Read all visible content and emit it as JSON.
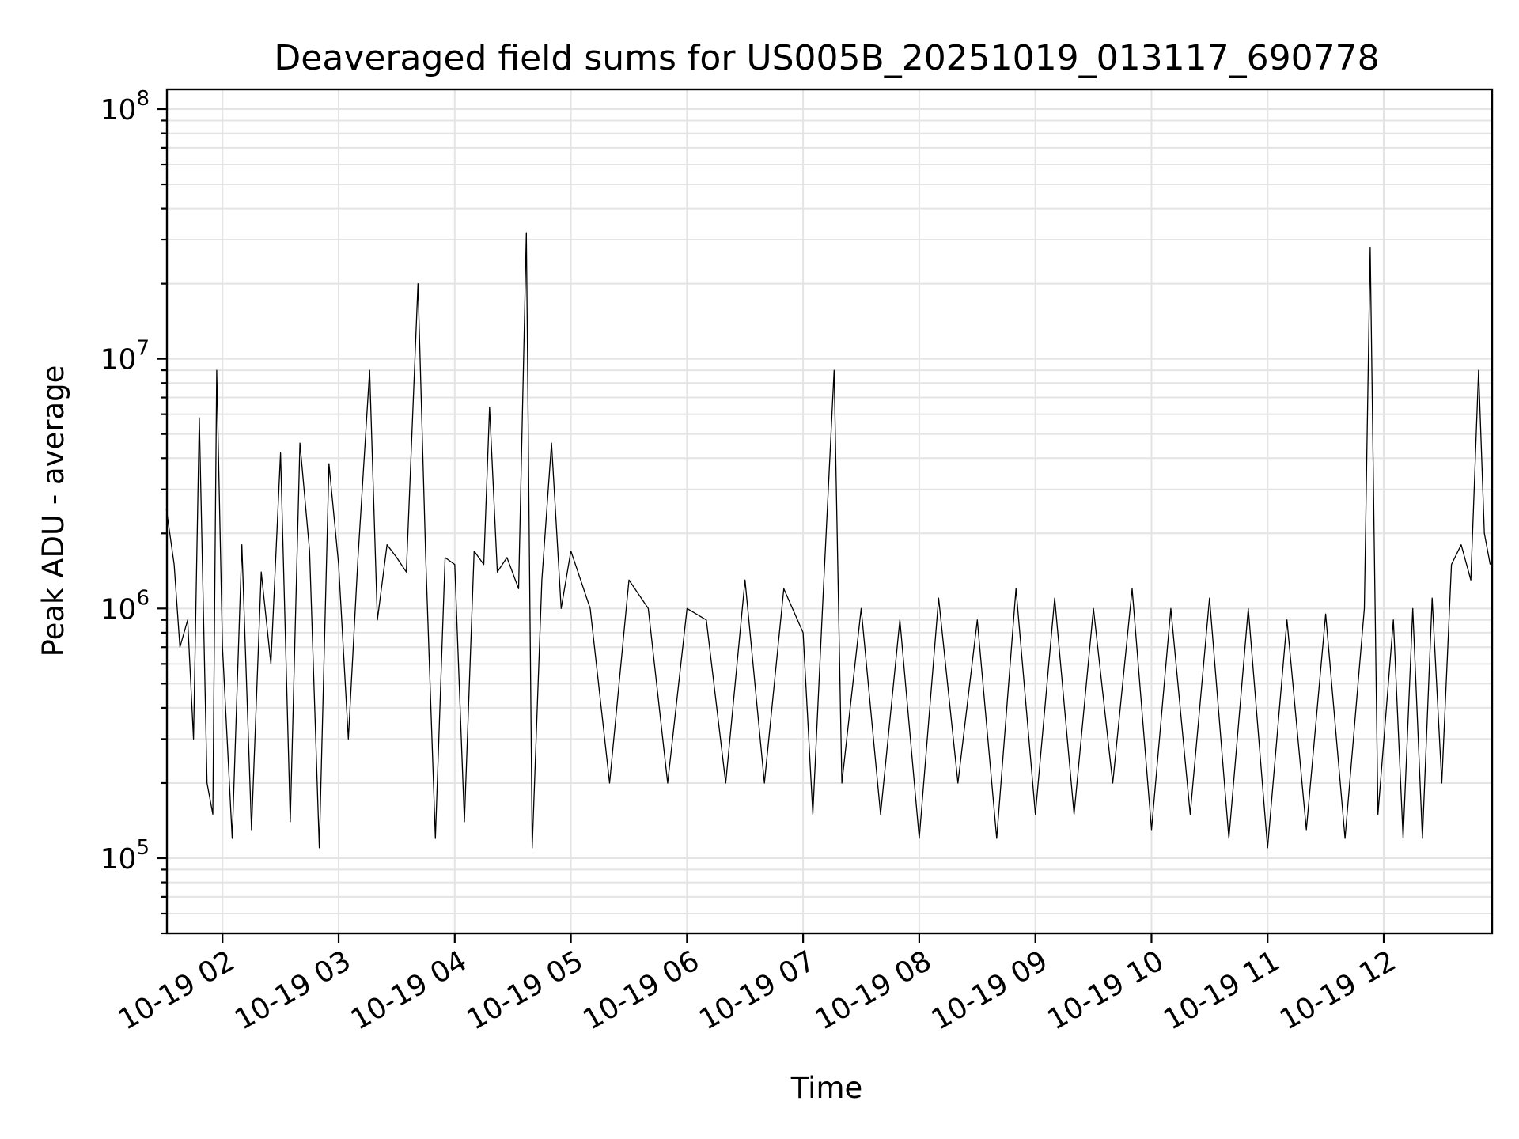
{
  "chart_data": {
    "type": "line",
    "title": "Deaveraged field sums for US005B_20251019_013117_690778",
    "xlabel": "Time",
    "ylabel": "Peak ADU - average",
    "yscale": "log",
    "ylim": [
      50000,
      120000000
    ],
    "xlim": [
      "2025-10-19 01:31:17",
      "2025-10-19 12:56:00"
    ],
    "grid": true,
    "x_ticks": [
      {
        "label": "10-19 02",
        "value": "2025-10-19 02:00"
      },
      {
        "label": "10-19 03",
        "value": "2025-10-19 03:00"
      },
      {
        "label": "10-19 04",
        "value": "2025-10-19 04:00"
      },
      {
        "label": "10-19 05",
        "value": "2025-10-19 05:00"
      },
      {
        "label": "10-19 06",
        "value": "2025-10-19 06:00"
      },
      {
        "label": "10-19 07",
        "value": "2025-10-19 07:00"
      },
      {
        "label": "10-19 08",
        "value": "2025-10-19 08:00"
      },
      {
        "label": "10-19 09",
        "value": "2025-10-19 09:00"
      },
      {
        "label": "10-19 10",
        "value": "2025-10-19 10:00"
      },
      {
        "label": "10-19 11",
        "value": "2025-10-19 11:00"
      },
      {
        "label": "10-19 12",
        "value": "2025-10-19 12:00"
      }
    ],
    "y_ticks": [
      {
        "base": "10",
        "exp": "5",
        "value": 100000
      },
      {
        "base": "10",
        "exp": "6",
        "value": 1000000
      },
      {
        "base": "10",
        "exp": "7",
        "value": 10000000
      },
      {
        "base": "10",
        "exp": "8",
        "value": 100000000
      }
    ],
    "line_color": "#000000",
    "series": [
      {
        "x": [
          "2025-10-19 01:31",
          "2025-10-19 01:35",
          "2025-10-19 01:38",
          "2025-10-19 01:42",
          "2025-10-19 01:45",
          "2025-10-19 01:48",
          "2025-10-19 01:52",
          "2025-10-19 01:55",
          "2025-10-19 01:57",
          "2025-10-19 02:00",
          "2025-10-19 02:05",
          "2025-10-19 02:10",
          "2025-10-19 02:15",
          "2025-10-19 02:20",
          "2025-10-19 02:25",
          "2025-10-19 02:30",
          "2025-10-19 02:35",
          "2025-10-19 02:40",
          "2025-10-19 02:45",
          "2025-10-19 02:50",
          "2025-10-19 02:55",
          "2025-10-19 03:00",
          "2025-10-19 03:05",
          "2025-10-19 03:10",
          "2025-10-19 03:16",
          "2025-10-19 03:20",
          "2025-10-19 03:25",
          "2025-10-19 03:30",
          "2025-10-19 03:35",
          "2025-10-19 03:41",
          "2025-10-19 03:45",
          "2025-10-19 03:50",
          "2025-10-19 03:55",
          "2025-10-19 04:00",
          "2025-10-19 04:05",
          "2025-10-19 04:10",
          "2025-10-19 04:15",
          "2025-10-19 04:18",
          "2025-10-19 04:22",
          "2025-10-19 04:27",
          "2025-10-19 04:33",
          "2025-10-19 04:37",
          "2025-10-19 04:40",
          "2025-10-19 04:45",
          "2025-10-19 04:50",
          "2025-10-19 04:55",
          "2025-10-19 05:00",
          "2025-10-19 05:10",
          "2025-10-19 05:20",
          "2025-10-19 05:30",
          "2025-10-19 05:40",
          "2025-10-19 05:50",
          "2025-10-19 06:00",
          "2025-10-19 06:10",
          "2025-10-19 06:20",
          "2025-10-19 06:30",
          "2025-10-19 06:40",
          "2025-10-19 06:50",
          "2025-10-19 07:00",
          "2025-10-19 07:05",
          "2025-10-19 07:10",
          "2025-10-19 07:16",
          "2025-10-19 07:20",
          "2025-10-19 07:30",
          "2025-10-19 07:40",
          "2025-10-19 07:50",
          "2025-10-19 08:00",
          "2025-10-19 08:10",
          "2025-10-19 08:20",
          "2025-10-19 08:30",
          "2025-10-19 08:40",
          "2025-10-19 08:50",
          "2025-10-19 09:00",
          "2025-10-19 09:10",
          "2025-10-19 09:20",
          "2025-10-19 09:30",
          "2025-10-19 09:40",
          "2025-10-19 09:50",
          "2025-10-19 10:00",
          "2025-10-19 10:10",
          "2025-10-19 10:20",
          "2025-10-19 10:30",
          "2025-10-19 10:40",
          "2025-10-19 10:50",
          "2025-10-19 11:00",
          "2025-10-19 11:10",
          "2025-10-19 11:20",
          "2025-10-19 11:30",
          "2025-10-19 11:40",
          "2025-10-19 11:50",
          "2025-10-19 11:53",
          "2025-10-19 11:57",
          "2025-10-19 12:05",
          "2025-10-19 12:10",
          "2025-10-19 12:15",
          "2025-10-19 12:20",
          "2025-10-19 12:25",
          "2025-10-19 12:30",
          "2025-10-19 12:35",
          "2025-10-19 12:40",
          "2025-10-19 12:45",
          "2025-10-19 12:49",
          "2025-10-19 12:52",
          "2025-10-19 12:55"
        ],
        "y": [
          2500000,
          1500000,
          700000,
          900000,
          300000,
          5800000,
          200000,
          150000,
          9000000,
          700000,
          120000,
          1800000,
          130000,
          1400000,
          600000,
          4200000,
          140000,
          4600000,
          1700000,
          110000,
          3800000,
          1500000,
          300000,
          1600000,
          9000000,
          900000,
          1800000,
          1600000,
          1400000,
          20000000,
          1600000,
          120000,
          1600000,
          1500000,
          140000,
          1700000,
          1500000,
          6400000,
          1400000,
          1600000,
          1200000,
          32000000,
          110000,
          1300000,
          4600000,
          1000000,
          1700000,
          1000000,
          200000,
          1300000,
          1000000,
          200000,
          1000000,
          900000,
          200000,
          1300000,
          200000,
          1200000,
          800000,
          150000,
          1000000,
          9000000,
          200000,
          1000000,
          150000,
          900000,
          120000,
          1100000,
          200000,
          900000,
          120000,
          1200000,
          150000,
          1100000,
          150000,
          1000000,
          200000,
          1200000,
          130000,
          1000000,
          150000,
          1100000,
          120000,
          1000000,
          110000,
          900000,
          130000,
          950000,
          120000,
          1000000,
          28000000,
          150000,
          900000,
          120000,
          1000000,
          120000,
          1100000,
          200000,
          1500000,
          1800000,
          1300000,
          9000000,
          2000000,
          1500000
        ]
      }
    ]
  }
}
